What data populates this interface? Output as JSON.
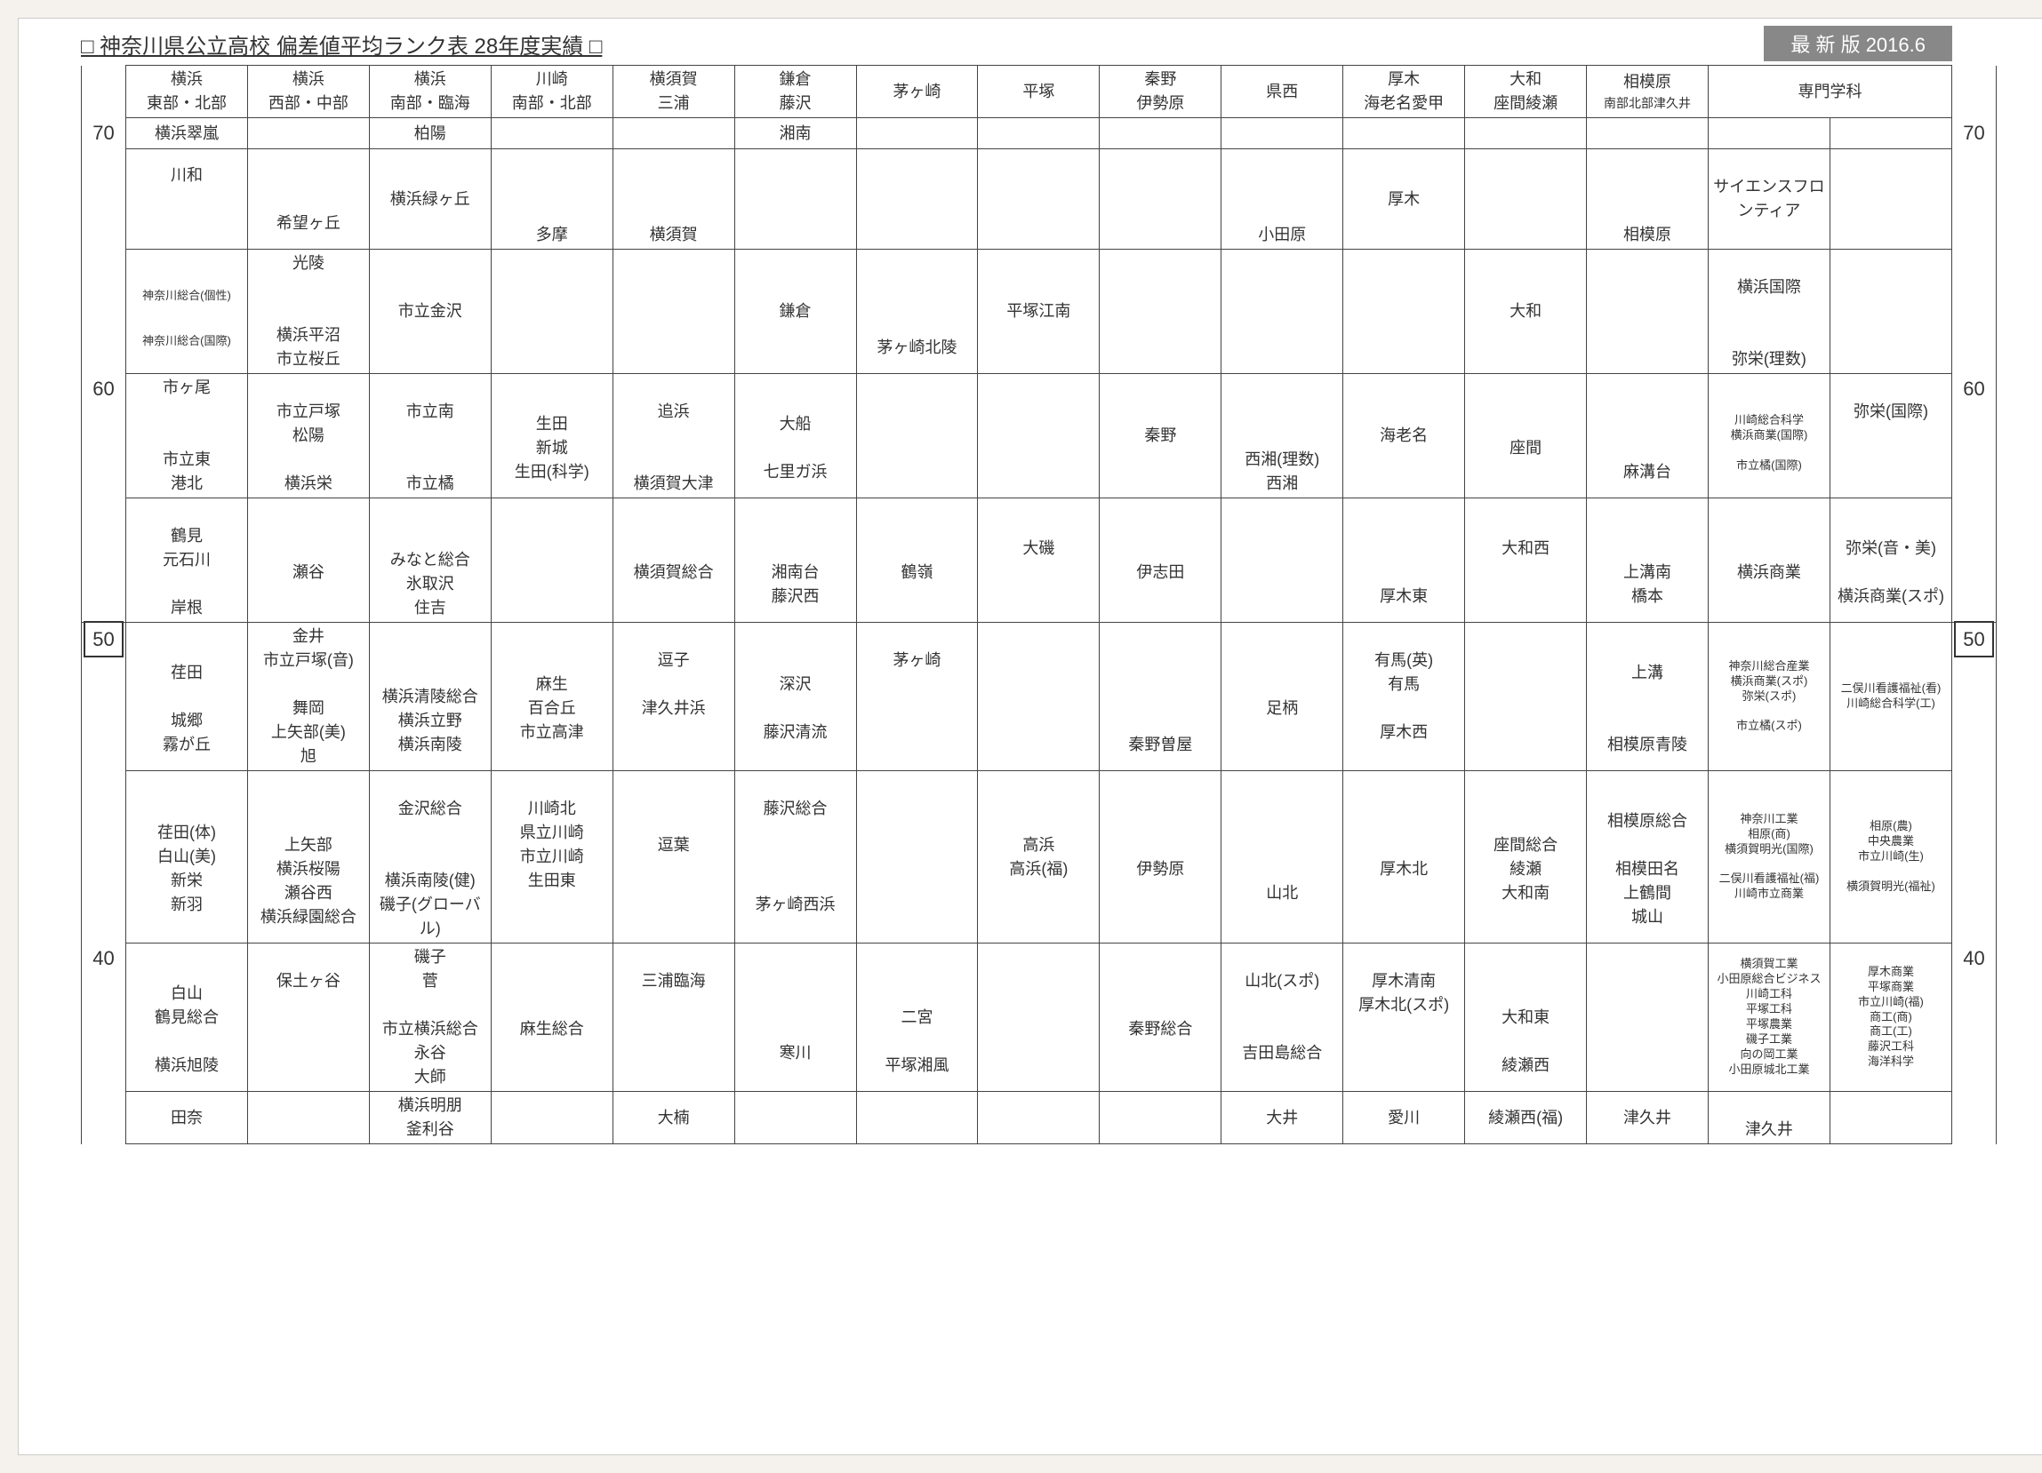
{
  "title": "□ 神奈川県公立高校 偏差値平均ランク表 28年度実績 □",
  "version": "最 新 版  2016.6",
  "axis_left": [
    "70",
    "60",
    "50",
    "40"
  ],
  "axis_box": "50",
  "columns": [
    {
      "l1": "横浜",
      "l2": "東部・北部"
    },
    {
      "l1": "横浜",
      "l2": "西部・中部"
    },
    {
      "l1": "横浜",
      "l2": "南部・臨海"
    },
    {
      "l1": "川崎",
      "l2": "南部・北部"
    },
    {
      "l1": "横須賀",
      "l2": "三浦"
    },
    {
      "l1": "鎌倉",
      "l2": "藤沢"
    },
    {
      "l1": "茅ヶ崎",
      "l2": " "
    },
    {
      "l1": "平塚",
      "l2": " "
    },
    {
      "l1": "秦野",
      "l2": "伊勢原"
    },
    {
      "l1": "県西",
      "l2": " "
    },
    {
      "l1": "厚木",
      "l2": "海老名愛甲"
    },
    {
      "l1": "大和",
      "l2": "座間綾瀬"
    },
    {
      "l1": "相模原",
      "l2": "南部北部津久井",
      "small": true
    },
    {
      "l1": "専門学科",
      "l2": " ",
      "span": 2
    }
  ],
  "bands": [
    {
      "a": "70",
      "cells": [
        "横浜翠嵐",
        "",
        "柏陽",
        "",
        "",
        "湘南",
        "",
        "",
        "",
        "",
        "",
        "",
        "",
        "",
        ""
      ]
    },
    {
      "cells": [
        "川和\n\n\n",
        "\n\n希望ヶ丘",
        "\n横浜緑ヶ丘\n\n",
        "\n\n\n多摩",
        "\n\n\n横須賀",
        "",
        "",
        "",
        "",
        "\n\n\n小田原",
        "\n厚木\n\n",
        "",
        "\n\n\n相模原",
        "\nサイエンスフロンティア\n\n",
        ""
      ]
    },
    {
      "cells": [
        "\n神奈川総合(個性)\n\n\n神奈川総合(国際)",
        "光陵\n\n\n横浜平沼\n市立桜丘",
        "\n市立金沢\n\n",
        "",
        "",
        "\n鎌倉\n\n",
        "\n\n\n茅ヶ崎北陵",
        "\n平塚江南\n\n",
        "",
        "",
        "",
        "\n大和\n\n",
        "",
        "\n横浜国際\n\n\n弥栄(理数)",
        ""
      ],
      "small_idx": [
        0
      ]
    },
    {
      "a": "60",
      "cells": [
        "市ヶ尾\n\n\n市立東\n港北",
        "\n市立戸塚\n松陽\n\n横浜栄",
        "\n市立南\n\n\n市立橘",
        "\n生田\n新城\n生田(科学)\n",
        "\n追浜\n\n\n横須賀大津",
        "\n大船\n\n七里ガ浜\n",
        "",
        "",
        "\n秦野\n\n",
        "\n\n\n西湘(理数)\n西湘",
        "\n海老名\n\n",
        "\n\n座間\n\n",
        "\n\n\n麻溝台\n",
        "\n川崎総合科学\n横浜商業(国際)\n\n市立橘(国際)",
        "弥栄(国際)\n\n\n"
      ],
      "small_idx": [
        13
      ]
    },
    {
      "cells": [
        "\n鶴見\n元石川\n\n岸根",
        "\n\n瀬谷\n\n",
        "\n\nみなと総合\n氷取沢\n住吉",
        "",
        "\n\n横須賀総合\n\n",
        "\n\n湘南台\n藤沢西\n",
        "\n\n鶴嶺\n\n",
        "\n大磯\n\n\n",
        "\n\n伊志田\n\n",
        "",
        "\n\n\n厚木東\n",
        "\n大和西\n\n\n",
        "\n\n上溝南\n橋本\n",
        "\n\n横浜商業\n\n",
        "\n弥栄(音・美)\n\n横浜商業(スポ)"
      ]
    },
    {
      "a": "50",
      "dash": true,
      "cells": [
        "\n荏田\n\n城郷\n霧が丘",
        "金井\n市立戸塚(音)\n\n舞岡\n上矢部(美)\n旭",
        "\n\n横浜清陵総合\n横浜立野\n横浜南陵",
        "\n麻生\n百合丘\n市立高津\n",
        "逗子\n\n津久井浜\n\n",
        "\n深沢\n\n藤沢清流\n",
        "茅ヶ崎\n\n\n\n",
        "",
        "\n\n\n\n秦野曽屋",
        "\n\n足柄\n\n",
        "有馬(英)\n有馬\n\n厚木西\n",
        "",
        "\n上溝\n\n\n相模原青陵",
        "神奈川総合産業\n横浜商業(スポ)\n弥栄(スポ)\n\n市立橘(スポ)",
        "\n二俣川看護福祉(看)\n川崎総合科学(工)\n\n"
      ],
      "small_idx": [
        13,
        14
      ]
    },
    {
      "cells": [
        "\n荏田(体)\n白山(美)\n新栄\n新羽",
        "\n\n上矢部\n横浜桜陽\n瀬谷西\n横浜緑園総合",
        "\n金沢総合\n\n\n横浜南陵(健)\n磯子(グローバル)",
        "川崎北\n県立川崎\n市立川崎\n生田東\n\n",
        "\n逗葉\n\n\n",
        "藤沢総合\n\n\n\n茅ヶ崎西浜",
        "\n\n\n\n",
        "\n高浜\n高浜(福)\n\n",
        "\n\n伊勢原\n\n",
        "\n\n\n山北\n",
        "\n\n厚木北\n\n",
        "\n座間総合\n綾瀬\n大和南\n",
        "\n相模原総合\n\n相模田名\n上鶴間\n城山",
        "神奈川工業\n相原(商)\n横須賀明光(国際)\n\n二俣川看護福祉(福)\n川崎市立商業",
        "相原(農)\n中央農業\n市立川崎(生)\n\n横須賀明光(福祉)"
      ],
      "small_idx": [
        13,
        14
      ]
    },
    {
      "a": "40",
      "cells": [
        "\n白山\n鶴見総合\n\n横浜旭陵",
        "保土ヶ谷\n\n\n\n",
        "磯子\n菅\n\n市立横浜総合\n永谷\n大師",
        "\n\n麻生総合\n\n",
        "三浦臨海\n\n\n\n",
        "\n\n\n寒川\n",
        "\n\n二宮\n\n平塚湘風",
        "",
        "\n\n秦野総合\n\n",
        "山北(スポ)\n\n\n吉田島総合\n",
        "厚木清南\n厚木北(スポ)\n\n\n",
        "\n\n大和東\n\n綾瀬西",
        "",
        "横須賀工業\n小田原総合ビジネス\n川崎工科\n平塚工科\n平塚農業\n磯子工業\n向の岡工業\n小田原城北工業",
        "厚木商業\n平塚商業\n市立川崎(福)\n商工(商)\n商工(工)\n藤沢工科\n海洋科学"
      ],
      "small_idx": [
        13,
        14
      ]
    },
    {
      "cells": [
        "田奈",
        "",
        "横浜明朋\n釜利谷",
        "",
        "大楠",
        "",
        "",
        "",
        "",
        "大井",
        "愛川",
        "綾瀬西(福)",
        "津久井",
        "\n津久井",
        ""
      ]
    }
  ]
}
